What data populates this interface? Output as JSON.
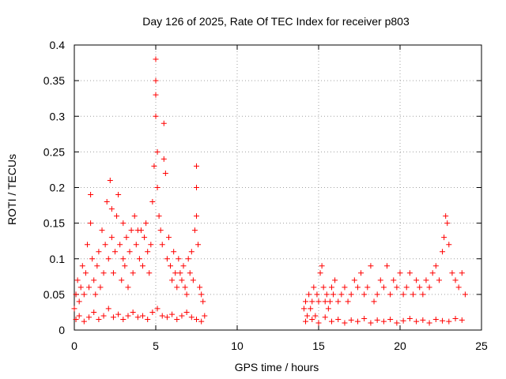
{
  "chart_data": {
    "type": "scatter",
    "title": "Day 126 of 2025, Rate Of TEC Index for receiver p803",
    "xlabel": "GPS time / hours",
    "ylabel": "ROTI / TECUs",
    "xlim": [
      0,
      25
    ],
    "ylim": [
      0,
      0.4
    ],
    "xticks": [
      0,
      5,
      10,
      15,
      20,
      25
    ],
    "xtick_labels": [
      "0",
      "5",
      "10",
      "15",
      "20",
      "25"
    ],
    "yticks": [
      0,
      0.05,
      0.1,
      0.15,
      0.2,
      0.25,
      0.3,
      0.35,
      0.4
    ],
    "ytick_labels": [
      "0",
      "0.05",
      "0.1",
      "0.15",
      "0.2",
      "0.25",
      "0.3",
      "0.35",
      "0.4"
    ],
    "grid": true,
    "marker": "+",
    "color": "#ff0000",
    "series": [
      {
        "x": [
          0.0,
          0.1,
          0.2,
          0.3,
          0.4,
          0.5,
          0.6,
          0.7,
          0.8,
          0.9,
          1.0,
          1.0,
          1.1,
          1.2,
          1.3,
          1.4,
          1.5,
          1.6,
          1.7,
          1.8,
          1.9,
          2.0,
          2.1,
          2.2,
          2.3,
          2.3,
          2.4,
          2.5,
          2.6,
          2.7,
          2.8,
          2.9,
          3.0,
          3.0,
          3.1,
          3.2,
          3.3,
          3.4,
          3.5,
          3.6,
          3.7,
          3.8,
          3.9,
          4.0,
          4.1,
          4.2,
          4.3,
          4.4,
          4.5,
          4.6,
          4.7,
          4.8,
          4.9,
          5.0,
          5.0,
          5.0,
          5.0,
          5.1,
          5.1,
          5.2,
          5.3,
          5.4,
          5.5,
          5.5,
          5.6,
          5.7,
          5.8,
          5.9,
          6.0,
          6.1,
          6.2,
          6.3,
          6.4,
          6.5,
          6.6,
          6.7,
          6.8,
          6.9,
          7.0,
          7.1,
          7.2,
          7.3,
          7.4,
          7.5,
          7.5,
          7.5,
          7.6,
          7.7,
          7.8,
          7.9,
          8.0,
          14.1,
          14.2,
          14.3,
          14.4,
          14.5,
          14.6,
          14.7,
          14.8,
          14.9,
          15.0,
          15.1,
          15.2,
          15.3,
          15.4,
          15.5,
          15.6,
          15.7,
          15.8,
          15.9,
          16.0,
          16.2,
          16.4,
          16.6,
          16.8,
          17.0,
          17.2,
          17.4,
          17.6,
          17.8,
          18.0,
          18.2,
          18.4,
          18.6,
          18.8,
          19.0,
          19.2,
          19.4,
          19.6,
          19.8,
          20.0,
          20.2,
          20.4,
          20.6,
          20.8,
          21.0,
          21.2,
          21.4,
          21.6,
          21.8,
          22.0,
          22.2,
          22.4,
          22.6,
          22.7,
          22.8,
          22.9,
          23.0,
          23.2,
          23.4,
          23.6,
          23.8,
          24.0
        ],
        "y": [
          0.03,
          0.05,
          0.07,
          0.04,
          0.06,
          0.09,
          0.05,
          0.08,
          0.12,
          0.06,
          0.19,
          0.15,
          0.1,
          0.07,
          0.05,
          0.09,
          0.11,
          0.06,
          0.14,
          0.08,
          0.12,
          0.18,
          0.1,
          0.21,
          0.17,
          0.13,
          0.08,
          0.11,
          0.16,
          0.19,
          0.12,
          0.07,
          0.15,
          0.1,
          0.09,
          0.13,
          0.06,
          0.11,
          0.14,
          0.08,
          0.16,
          0.12,
          0.14,
          0.1,
          0.14,
          0.09,
          0.13,
          0.15,
          0.11,
          0.08,
          0.12,
          0.18,
          0.23,
          0.38,
          0.33,
          0.3,
          0.35,
          0.2,
          0.25,
          0.16,
          0.14,
          0.12,
          0.29,
          0.24,
          0.22,
          0.1,
          0.13,
          0.09,
          0.07,
          0.11,
          0.08,
          0.06,
          0.1,
          0.08,
          0.07,
          0.09,
          0.06,
          0.05,
          0.1,
          0.08,
          0.11,
          0.07,
          0.14,
          0.23,
          0.2,
          0.16,
          0.12,
          0.06,
          0.05,
          0.04,
          0.02,
          0.03,
          0.04,
          0.02,
          0.05,
          0.03,
          0.04,
          0.06,
          0.02,
          0.05,
          0.04,
          0.08,
          0.09,
          0.06,
          0.04,
          0.05,
          0.03,
          0.04,
          0.06,
          0.05,
          0.07,
          0.04,
          0.05,
          0.06,
          0.04,
          0.05,
          0.07,
          0.06,
          0.08,
          0.05,
          0.06,
          0.09,
          0.04,
          0.05,
          0.07,
          0.06,
          0.09,
          0.05,
          0.07,
          0.06,
          0.08,
          0.05,
          0.06,
          0.08,
          0.05,
          0.07,
          0.06,
          0.05,
          0.07,
          0.06,
          0.08,
          0.09,
          0.07,
          0.11,
          0.13,
          0.16,
          0.15,
          0.12,
          0.08,
          0.07,
          0.06,
          0.08,
          0.05
        ]
      },
      {
        "x": [
          0.1,
          0.3,
          0.6,
          0.9,
          1.2,
          1.5,
          1.8,
          2.1,
          2.4,
          2.7,
          3.0,
          3.3,
          3.6,
          3.9,
          4.2,
          4.5,
          4.8,
          5.1,
          5.4,
          5.7,
          6.0,
          6.3,
          6.6,
          6.9,
          7.2,
          7.5,
          7.8,
          14.2,
          14.6,
          15.0,
          15.4,
          15.8,
          16.2,
          16.6,
          17.0,
          17.4,
          17.8,
          18.2,
          18.6,
          19.0,
          19.4,
          19.8,
          20.2,
          20.6,
          21.0,
          21.4,
          21.8,
          22.2,
          22.6,
          23.0,
          23.4,
          23.8
        ],
        "y": [
          0.015,
          0.02,
          0.012,
          0.018,
          0.025,
          0.015,
          0.02,
          0.03,
          0.018,
          0.022,
          0.015,
          0.02,
          0.025,
          0.018,
          0.02,
          0.015,
          0.025,
          0.03,
          0.02,
          0.018,
          0.022,
          0.015,
          0.02,
          0.025,
          0.018,
          0.015,
          0.012,
          0.012,
          0.015,
          0.01,
          0.018,
          0.012,
          0.015,
          0.01,
          0.014,
          0.012,
          0.016,
          0.01,
          0.014,
          0.012,
          0.015,
          0.01,
          0.013,
          0.016,
          0.012,
          0.014,
          0.01,
          0.015,
          0.013,
          0.012,
          0.016,
          0.014
        ]
      }
    ]
  }
}
